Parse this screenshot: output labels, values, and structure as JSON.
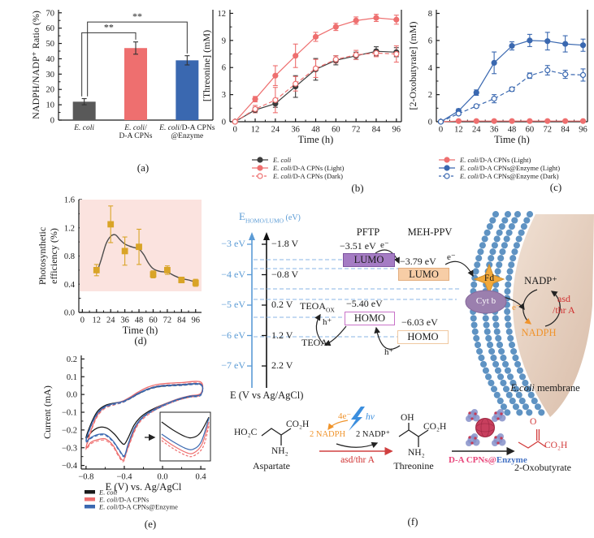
{
  "captions": {
    "a": "(a)",
    "b": "(b)",
    "c": "(c)",
    "d": "(d)",
    "e": "(e)",
    "f": "(f)"
  },
  "colors": {
    "gray_bar": "#595959",
    "red_series": "#ee6f6f",
    "blue_series": "#3a68b0",
    "gold_marker": "#d9a427",
    "pink_band": "#fbe3df",
    "nadph_orange": "#f0942c",
    "asd_red": "#d03030",
    "cpns_pink": "#e8457a",
    "enzyme_blue": "#4472c4",
    "membrane_blue": "#5f93c3",
    "lumo1_purple": "#a57cc4",
    "lumo2_peach": "#f7cda6"
  },
  "chart_data": [
    {
      "id": "a",
      "type": "bar",
      "ylabel": "NADPH/NADP⁺ Ratio (%)",
      "ylim": [
        0,
        72
      ],
      "ytick_vals": [
        0,
        10,
        20,
        30,
        40,
        50,
        60,
        70
      ],
      "ytick_labels": [
        "0",
        "10",
        "20",
        "30",
        "40",
        "50",
        "60",
        "70"
      ],
      "categories": [
        [
          "E. coli"
        ],
        [
          "E. coli/",
          "D-A CPNs"
        ],
        [
          "E. coli/D-A CPNs",
          "@Enzyme"
        ]
      ],
      "values": [
        12,
        47,
        39
      ],
      "errors": [
        2,
        4,
        3
      ],
      "colors": [
        "#595959",
        "#ee6f6f",
        "#3a68b0"
      ],
      "significance": [
        {
          "from": 0,
          "to": 1,
          "y": 57,
          "label": "**"
        },
        {
          "from": 0,
          "to": 2,
          "y": 64,
          "label": "**"
        }
      ]
    },
    {
      "id": "b",
      "type": "line",
      "xlabel": "Time (h)",
      "ylabel": "[Threonine] (mM)",
      "xlim": [
        -3,
        99
      ],
      "ylim": [
        0,
        12.4
      ],
      "xtick_vals": [
        0,
        12,
        24,
        36,
        48,
        60,
        72,
        84,
        96
      ],
      "xtick_labels": [
        "0",
        "12",
        "24",
        "36",
        "48",
        "60",
        "72",
        "84",
        "96"
      ],
      "ytick_vals": [
        0,
        3,
        6,
        9,
        12
      ],
      "ytick_labels": [
        "0",
        "3",
        "6",
        "9",
        "12"
      ],
      "x": [
        0,
        12,
        24,
        36,
        48,
        60,
        72,
        84,
        96
      ],
      "series": [
        {
          "name_i": "E. coli",
          "name_r": "",
          "color": "#3c3c3c",
          "marker": "circle",
          "fill": true,
          "dash": false,
          "values": [
            0,
            1.3,
            2.0,
            3.9,
            5.8,
            6.8,
            7.3,
            7.8,
            7.7
          ],
          "errors": [
            0,
            0.3,
            0.4,
            1.2,
            1.2,
            0.5,
            0.4,
            0.5,
            0.5
          ]
        },
        {
          "name_i": "E. coli",
          "name_r": "/D-A CPNs (Light)",
          "color": "#ee6f6f",
          "marker": "circle",
          "fill": true,
          "dash": false,
          "values": [
            0,
            2.5,
            5.1,
            7.3,
            9.4,
            10.5,
            11.2,
            11.5,
            11.3
          ],
          "errors": [
            0,
            0.3,
            1.1,
            1.3,
            0.5,
            0.4,
            0.4,
            0.4,
            0.5
          ]
        },
        {
          "name_i": "E. coli",
          "name_r": "/D-A CPNs (Dark)",
          "color": "#ee6f6f",
          "marker": "circle",
          "fill": false,
          "dash": true,
          "values": [
            0,
            1.4,
            2.4,
            4.2,
            5.9,
            6.9,
            7.4,
            7.6,
            7.5
          ],
          "errors": [
            0,
            0.4,
            1.4,
            0.8,
            1.0,
            0.4,
            0.5,
            0.4,
            0.9
          ]
        }
      ]
    },
    {
      "id": "c",
      "type": "line",
      "xlabel": "Time (h)",
      "ylabel": "[2-Oxobutyrate] (mM)",
      "xlim": [
        -3,
        99
      ],
      "ylim": [
        0,
        8.27
      ],
      "xtick_vals": [
        0,
        12,
        24,
        36,
        48,
        60,
        72,
        84,
        96
      ],
      "xtick_labels": [
        "0",
        "12",
        "24",
        "36",
        "48",
        "60",
        "72",
        "84",
        "96"
      ],
      "ytick_vals": [
        0,
        2,
        4,
        6,
        8
      ],
      "ytick_labels": [
        "0",
        "2",
        "4",
        "6",
        "8"
      ],
      "x": [
        0,
        12,
        24,
        36,
        48,
        60,
        72,
        84,
        96
      ],
      "series": [
        {
          "name_i": "E. coli",
          "name_r": "/D-A CPNs (Light)",
          "color": "#ee6f6f",
          "marker": "circle",
          "fill": true,
          "dash": false,
          "values": [
            0,
            0.05,
            0.05,
            0.05,
            0.05,
            0.05,
            0.05,
            0.05,
            0.05
          ],
          "errors": [
            0,
            0,
            0,
            0,
            0,
            0,
            0,
            0,
            0
          ]
        },
        {
          "name_i": "E. coli",
          "name_r": "/D-A CPNs@Enzyme (Light)",
          "color": "#3a68b0",
          "marker": "circle",
          "fill": true,
          "dash": false,
          "values": [
            0,
            0.8,
            2.15,
            4.35,
            5.6,
            6.0,
            5.95,
            5.75,
            5.65
          ],
          "errors": [
            0,
            0.15,
            0.2,
            0.8,
            0.3,
            0.45,
            0.65,
            0.6,
            0.45
          ]
        },
        {
          "name_i": "E. coli",
          "name_r": "/D-A CPNs@Enzyme (Dark)",
          "color": "#3a68b0",
          "marker": "circle",
          "fill": false,
          "dash": true,
          "values": [
            0,
            0.6,
            1.15,
            1.7,
            2.4,
            3.4,
            3.8,
            3.5,
            3.45
          ],
          "errors": [
            0,
            0.1,
            0.1,
            0.3,
            0.15,
            0.2,
            0.35,
            0.3,
            0.45
          ]
        }
      ]
    },
    {
      "id": "d",
      "type": "line",
      "xlabel": "Time (h)",
      "ylabel_lines": [
        "Photosynthetic",
        "efficiency (%)"
      ],
      "xlim": [
        -3,
        101
      ],
      "ylim": [
        0,
        1.6
      ],
      "xtick_vals": [
        0,
        12,
        24,
        36,
        48,
        60,
        72,
        84,
        96
      ],
      "xtick_labels": [
        "0",
        "12",
        "24",
        "36",
        "48",
        "60",
        "72",
        "84",
        "96"
      ],
      "ytick_vals": [
        0,
        0.4,
        0.8,
        1.2,
        1.6
      ],
      "ytick_labels": [
        "0.0",
        "0.4",
        "0.8",
        "1.2",
        "1.6"
      ],
      "band": [
        0.3,
        1.6
      ],
      "band_color": "#fbe3df",
      "x": [
        12,
        24,
        36,
        48,
        60,
        72,
        84,
        96
      ],
      "trend": [
        [
          12,
          0.55
        ],
        [
          16,
          0.75
        ],
        [
          20,
          0.97
        ],
        [
          24,
          1.08
        ],
        [
          28,
          1.1
        ],
        [
          32,
          1.03
        ],
        [
          36,
          0.97
        ],
        [
          40,
          0.94
        ],
        [
          44,
          0.92
        ],
        [
          48,
          0.9
        ],
        [
          52,
          0.82
        ],
        [
          56,
          0.7
        ],
        [
          60,
          0.62
        ],
        [
          66,
          0.58
        ],
        [
          72,
          0.57
        ],
        [
          78,
          0.52
        ],
        [
          84,
          0.48
        ],
        [
          90,
          0.46
        ],
        [
          96,
          0.43
        ]
      ],
      "series": [
        {
          "name_i": "",
          "name_r": "",
          "color": "#d9a427",
          "marker": "square",
          "fill": true,
          "dash": false,
          "noline": true,
          "values": [
            0.6,
            1.25,
            0.87,
            0.93,
            0.54,
            0.6,
            0.46,
            0.42
          ],
          "errors": [
            0.08,
            0.26,
            0.2,
            0.25,
            0.05,
            0.06,
            0.04,
            0.05
          ]
        }
      ]
    },
    {
      "id": "e",
      "type": "cv",
      "xlabel": "E (V) vs. Ag/AgCl",
      "ylabel": "Current (mA)",
      "xlim": [
        -0.85,
        0.45
      ],
      "ylim": [
        -0.42,
        0.22
      ],
      "xtick_vals": [
        -0.8,
        -0.4,
        0,
        0.4
      ],
      "xtick_labels": [
        "−0.8",
        "−0.4",
        "0.0",
        "0.4"
      ],
      "ytick_vals": [
        0.2,
        0.1,
        0,
        -0.1,
        -0.2,
        -0.3,
        -0.4
      ],
      "ytick_labels": [
        "0.2",
        "0.1",
        "0.0",
        "−0.1",
        "−0.2",
        "−0.3",
        "−0.4"
      ],
      "series": [
        {
          "name_i": "E. coli",
          "name_r": "",
          "color": "#1a1a1a",
          "clone_dy": 0,
          "pts": [
            [
              -0.8,
              -0.245
            ],
            [
              -0.74,
              -0.155
            ],
            [
              -0.68,
              -0.095
            ],
            [
              -0.6,
              -0.062
            ],
            [
              -0.5,
              -0.048
            ],
            [
              -0.42,
              -0.04
            ],
            [
              -0.34,
              -0.022
            ],
            [
              -0.26,
              0.002
            ],
            [
              -0.16,
              0.028
            ],
            [
              -0.06,
              0.043
            ],
            [
              0.06,
              0.05
            ],
            [
              0.2,
              0.054
            ],
            [
              0.4,
              0.057
            ],
            [
              0.4,
              0.002
            ],
            [
              0.28,
              -0.012
            ],
            [
              0.16,
              -0.028
            ],
            [
              0.04,
              -0.05
            ],
            [
              -0.06,
              -0.072
            ],
            [
              -0.16,
              -0.1
            ],
            [
              -0.24,
              -0.133
            ],
            [
              -0.3,
              -0.175
            ],
            [
              -0.36,
              -0.245
            ],
            [
              -0.4,
              -0.28
            ],
            [
              -0.44,
              -0.265
            ],
            [
              -0.5,
              -0.225
            ],
            [
              -0.58,
              -0.19
            ],
            [
              -0.66,
              -0.185
            ],
            [
              -0.73,
              -0.205
            ],
            [
              -0.8,
              -0.245
            ]
          ]
        },
        {
          "name_i": "E. coli",
          "name_r": "/D-A CPNs",
          "color": "#ee6f6f",
          "clone_dy": 1.8,
          "pts": [
            [
              -0.8,
              -0.3
            ],
            [
              -0.74,
              -0.19
            ],
            [
              -0.68,
              -0.115
            ],
            [
              -0.6,
              -0.07
            ],
            [
              -0.5,
              -0.05
            ],
            [
              -0.42,
              -0.038
            ],
            [
              -0.34,
              -0.015
            ],
            [
              -0.26,
              0.012
            ],
            [
              -0.16,
              0.04
            ],
            [
              -0.06,
              0.056
            ],
            [
              0.06,
              0.063
            ],
            [
              0.2,
              0.067
            ],
            [
              0.4,
              0.07
            ],
            [
              0.4,
              0.006
            ],
            [
              0.28,
              -0.008
            ],
            [
              0.16,
              -0.025
            ],
            [
              0.04,
              -0.05
            ],
            [
              -0.06,
              -0.075
            ],
            [
              -0.16,
              -0.11
            ],
            [
              -0.24,
              -0.15
            ],
            [
              -0.3,
              -0.21
            ],
            [
              -0.37,
              -0.31
            ],
            [
              -0.41,
              -0.37
            ],
            [
              -0.46,
              -0.34
            ],
            [
              -0.52,
              -0.285
            ],
            [
              -0.6,
              -0.25
            ],
            [
              -0.68,
              -0.255
            ],
            [
              -0.75,
              -0.27
            ],
            [
              -0.8,
              -0.3
            ]
          ]
        },
        {
          "name_i": "E. coli",
          "name_r": "/D-A CPNs@Enzyme",
          "color": "#3a68b0",
          "clone_dy": 1.2,
          "pts": [
            [
              -0.8,
              -0.26
            ],
            [
              -0.74,
              -0.165
            ],
            [
              -0.68,
              -0.105
            ],
            [
              -0.6,
              -0.067
            ],
            [
              -0.5,
              -0.05
            ],
            [
              -0.42,
              -0.04
            ],
            [
              -0.34,
              -0.02
            ],
            [
              -0.26,
              0.005
            ],
            [
              -0.16,
              0.03
            ],
            [
              -0.06,
              0.046
            ],
            [
              0.06,
              0.052
            ],
            [
              0.2,
              0.056
            ],
            [
              0.4,
              0.058
            ],
            [
              0.4,
              0.0
            ],
            [
              0.28,
              -0.01
            ],
            [
              0.16,
              -0.027
            ],
            [
              0.04,
              -0.052
            ],
            [
              -0.06,
              -0.077
            ],
            [
              -0.16,
              -0.107
            ],
            [
              -0.24,
              -0.145
            ],
            [
              -0.3,
              -0.195
            ],
            [
              -0.36,
              -0.28
            ],
            [
              -0.4,
              -0.345
            ],
            [
              -0.45,
              -0.315
            ],
            [
              -0.52,
              -0.26
            ],
            [
              -0.6,
              -0.225
            ],
            [
              -0.67,
              -0.225
            ],
            [
              -0.74,
              -0.24
            ],
            [
              -0.8,
              -0.26
            ]
          ]
        }
      ],
      "inset_series": [
        {
          "color": "#1a1a1a",
          "dash": false,
          "pts": [
            [
              0.03,
              0.2
            ],
            [
              0.25,
              0.36
            ],
            [
              0.5,
              0.5
            ],
            [
              0.65,
              0.52
            ],
            [
              0.8,
              0.42
            ],
            [
              0.97,
              0.1
            ]
          ]
        },
        {
          "color": "#3a68b0",
          "dash": false,
          "pts": [
            [
              0.03,
              0.45
            ],
            [
              0.25,
              0.6
            ],
            [
              0.5,
              0.74
            ],
            [
              0.66,
              0.76
            ],
            [
              0.82,
              0.6
            ],
            [
              0.97,
              0.12
            ]
          ]
        },
        {
          "color": "#ee6f6f",
          "dash": false,
          "pts": [
            [
              0.03,
              0.52
            ],
            [
              0.25,
              0.68
            ],
            [
              0.5,
              0.82
            ],
            [
              0.66,
              0.84
            ],
            [
              0.83,
              0.66
            ],
            [
              0.97,
              0.2
            ]
          ]
        },
        {
          "color": "#ee6f6f",
          "dash": true,
          "pts": [
            [
              0.03,
              0.58
            ],
            [
              0.25,
              0.74
            ],
            [
              0.5,
              0.88
            ],
            [
              0.66,
              0.9
            ],
            [
              0.85,
              0.72
            ],
            [
              0.97,
              0.28
            ]
          ]
        }
      ]
    }
  ],
  "diagram": {
    "axis_title_main": "E",
    "axis_title_sub": "HOMO/LUMO",
    "axis_title_unit": " (eV)",
    "ev_ticks": [
      "−3 eV",
      "−4 eV",
      "−5 eV",
      "−6 eV",
      "−7 eV"
    ],
    "v_ticks": [
      "−1.8 V",
      "−0.8 V",
      "0.2 V",
      "1.2 V",
      "2.2 V"
    ],
    "axis_bottom_label": "E (V vs Ag/AgCl)",
    "pftp_label": "PFTP",
    "mehppv_label": "MEH-PPV",
    "lumo1_ev": "−3.51 eV",
    "lumo1_label": "LUMO",
    "lumo2_ev": "−3.79 eV",
    "lumo2_label": "LUMO",
    "homo1_ev": "−5.40 eV",
    "homo1_label": "HOMO",
    "homo2_ev": "−6.03 eV",
    "homo2_label": "HOMO",
    "teoa_base": "TEOA",
    "teoa_ox_sub": "OX",
    "teoa_label": "TEOA",
    "e_minus": "e⁻",
    "h_plus": "h⁺",
    "fd_label": "Fd",
    "cytb_label": "Cyt b",
    "nadp_label": "NADP⁺",
    "nadph_label": "NADPH",
    "asd_label": "asd",
    "thra_label": "/thr A",
    "membrane_italic": "E.coli",
    "membrane_rest": " membrane",
    "reaction": {
      "ho2c": "HO₂C",
      "co2h": "CO₂H",
      "nh2": "NH₂",
      "oh": "OH",
      "o": "O",
      "aspartate": "Aspartate",
      "threonine": "Threonine",
      "oxobutyrate": "2-Oxobutyrate",
      "four_e": "4e⁻",
      "hv": "hv",
      "nadph2": "2 NADPH",
      "nadp2": "2 NADP⁺",
      "asd_thra": "asd/thr A",
      "cpns": "D-A CPNs@",
      "enzyme": "Enzyme"
    }
  }
}
